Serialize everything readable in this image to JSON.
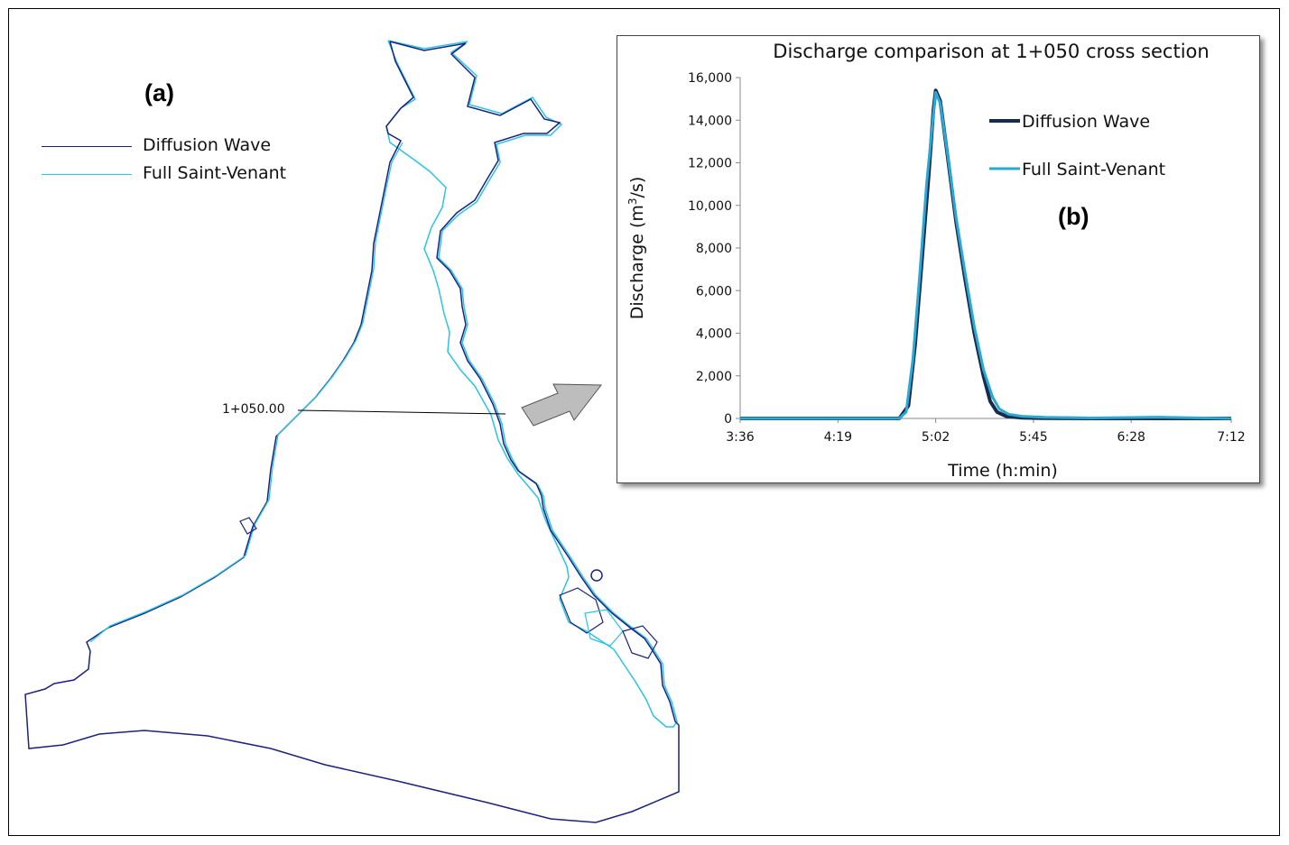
{
  "panel_a": {
    "label": "(a)",
    "legend": [
      {
        "name": "Diffusion Wave",
        "color": "#1a237e"
      },
      {
        "name": "Full Saint-Venant",
        "color": "#29c4e6"
      }
    ],
    "section_label": "1+050.00"
  },
  "colors": {
    "diffusion_wave": "#1a237e",
    "full_saint_venant": "#29c4e6",
    "arrow_fill": "#bdbdbd"
  },
  "chart_data": {
    "type": "line",
    "title": "Discharge comparison at 1+050 cross section",
    "xlabel": "Time (h:min)",
    "ylabel_prefix": "Discharge (m",
    "ylabel_sup": "3",
    "ylabel_suffix": "/s)",
    "panel_label": "(b)",
    "x_tick_labels": [
      "3:36",
      "4:19",
      "5:02",
      "5:45",
      "6:28",
      "7:12"
    ],
    "x_tick_minutes": [
      216,
      259,
      302,
      345,
      388,
      432
    ],
    "xlim": [
      216,
      432
    ],
    "y_tick_labels": [
      "0",
      "2,000",
      "4,000",
      "6,000",
      "8,000",
      "10,000",
      "12,000",
      "14,000",
      "16,000"
    ],
    "ylim": [
      0,
      16000
    ],
    "grid": false,
    "legend_position": "top-right",
    "series": [
      {
        "name": "Diffusion Wave",
        "color": "#1a2a4a",
        "x": [
          216,
          286,
          290,
          293,
          296,
          299,
          301,
          302,
          304,
          307,
          311,
          315,
          319,
          323,
          326,
          329,
          333,
          340,
          350,
          370,
          400,
          432
        ],
        "y": [
          0,
          0,
          600,
          3500,
          7500,
          11500,
          14500,
          15400,
          14900,
          12500,
          9200,
          6500,
          4000,
          2000,
          800,
          300,
          100,
          30,
          10,
          0,
          0,
          0
        ]
      },
      {
        "name": "Full Saint-Venant",
        "color": "#29a9d6",
        "x": [
          216,
          286,
          289,
          292,
          295,
          298,
          301,
          302,
          304,
          307,
          311,
          315,
          319,
          323,
          327,
          330,
          334,
          340,
          350,
          370,
          400,
          432
        ],
        "y": [
          0,
          0,
          300,
          2800,
          6800,
          11000,
          14300,
          15300,
          14800,
          12600,
          9400,
          6800,
          4300,
          2300,
          1000,
          450,
          200,
          100,
          50,
          20,
          60,
          0
        ]
      }
    ]
  }
}
